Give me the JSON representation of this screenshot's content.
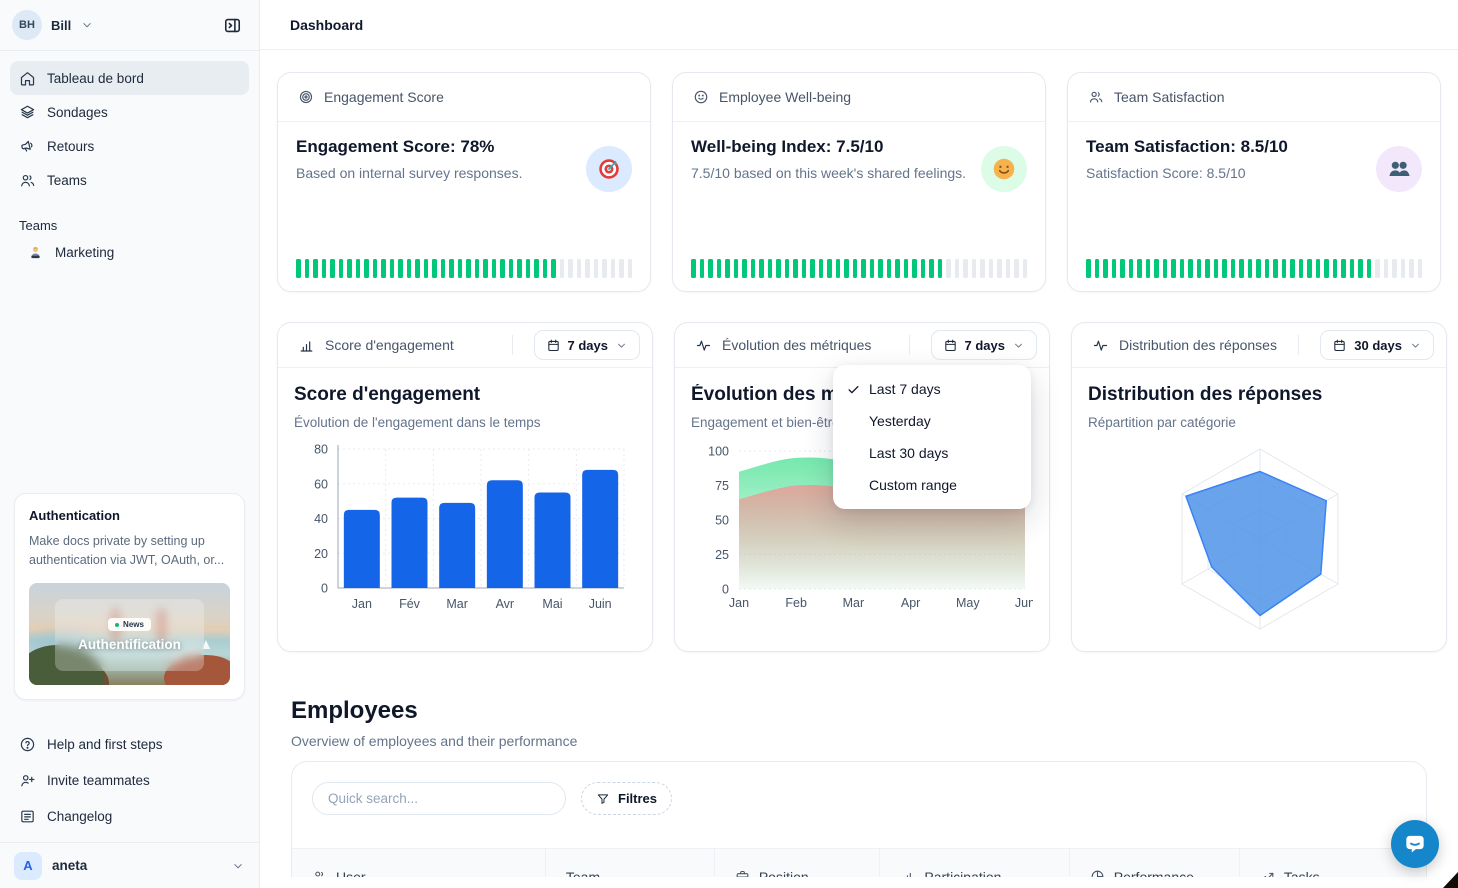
{
  "colors": {
    "green": "#00c878",
    "bar_blue": "#1565e8",
    "radar_blue": "#4f93e8",
    "area_green": "#6ee7a8",
    "area_red": "#f09694",
    "chat_blue": "#1486c9"
  },
  "sidebar": {
    "workspace": {
      "initials": "BH",
      "name": "Bill"
    },
    "nav": [
      {
        "icon": "home-icon",
        "label": "Tableau de bord",
        "active": true
      },
      {
        "icon": "layers-icon",
        "label": "Sondages",
        "active": false
      },
      {
        "icon": "megaphone-icon",
        "label": "Retours",
        "active": false
      },
      {
        "icon": "users-icon",
        "label": "Teams",
        "active": false
      }
    ],
    "teams_section": {
      "label": "Teams",
      "items": [
        {
          "label": "Marketing"
        }
      ]
    },
    "promo_card": {
      "title": "Authentication",
      "body": "Make docs private by setting up authentication via JWT, OAuth, or...",
      "badge": "News",
      "image_caption": "Authentification"
    },
    "footer_nav": [
      {
        "icon": "help-icon",
        "label": "Help and first steps"
      },
      {
        "icon": "user-plus-icon",
        "label": "Invite teammates"
      },
      {
        "icon": "changelog-icon",
        "label": "Changelog"
      }
    ],
    "account": {
      "initial": "A",
      "name": "aneta"
    }
  },
  "header": {
    "title": "Dashboard"
  },
  "stat_cards": [
    {
      "header_label": "Engagement Score",
      "header_icon": "target-icon",
      "title": "Engagement Score: 78%",
      "subtitle": "Based on internal survey responses.",
      "emblem": "target-emblem",
      "emblem_bg": "#dbeafe",
      "progress_pct": 78
    },
    {
      "header_label": "Employee Well-being",
      "header_icon": "smiley-icon",
      "title": "Well-being Index: 7.5/10",
      "subtitle": "7.5/10 based on this week's shared feelings.",
      "emblem": "smiley-emblem",
      "emblem_bg": "#dcfce7",
      "progress_pct": 75
    },
    {
      "header_label": "Team Satisfaction",
      "header_icon": "users-icon",
      "title": "Team Satisfaction: 8.5/10",
      "subtitle": "Satisfaction Score: 8.5/10",
      "emblem": "people-emblem",
      "emblem_bg": "#f3e8fb",
      "progress_pct": 85
    }
  ],
  "chart_cards": [
    {
      "header_label": "Score d'engagement",
      "header_icon": "chart-bars-icon",
      "range_label": "7 days"
    },
    {
      "header_label": "Évolution des métriques",
      "header_icon": "activity-icon",
      "range_label": "7 days"
    },
    {
      "header_label": "Distribution des réponses",
      "header_icon": "activity-icon",
      "range_label": "30 days"
    }
  ],
  "chart_data": [
    {
      "type": "bar",
      "title": "Score d'engagement",
      "subtitle": "Évolution de l'engagement dans le temps",
      "categories": [
        "Jan",
        "Fév",
        "Mar",
        "Avr",
        "Mai",
        "Juin"
      ],
      "values": [
        45,
        52,
        49,
        62,
        55,
        68
      ],
      "ylim": [
        0,
        80
      ],
      "yticks": [
        0,
        20,
        40,
        60,
        80
      ],
      "color": "#1565e8",
      "grid": "dashed"
    },
    {
      "type": "area",
      "title": "Évolution des métriques",
      "subtitle": "Engagement et bien-être",
      "x": [
        "Jan",
        "Feb",
        "Mar",
        "Apr",
        "May",
        "Jun"
      ],
      "series": [
        {
          "name": "engagement",
          "color": "#6ee7a8",
          "values": [
            85,
            95,
            90,
            63,
            66,
            72
          ]
        },
        {
          "name": "bien-être",
          "color": "#f09694",
          "values": [
            65,
            75,
            72,
            60,
            62,
            64
          ]
        }
      ],
      "ylim": [
        0,
        100
      ],
      "yticks": [
        0,
        25,
        50,
        75,
        100
      ],
      "grid": "dashed"
    },
    {
      "type": "radar",
      "title": "Distribution des réponses",
      "subtitle": "Répartition par catégorie",
      "axes": 6,
      "values": [
        75,
        85,
        78,
        85,
        62,
        95
      ],
      "max": 100,
      "rings": 3,
      "color": "#4f93e8"
    }
  ],
  "dropdown": {
    "items": [
      "Last 7 days",
      "Yesterday",
      "Last 30 days",
      "Custom range"
    ],
    "selected": "Last 7 days"
  },
  "employees": {
    "title": "Employees",
    "subtitle": "Overview of employees and their performance",
    "search_placeholder": "Quick search...",
    "filter_label": "Filtres",
    "columns": [
      {
        "label": "User",
        "icon": "users-icon"
      },
      {
        "label": "Team",
        "icon": ""
      },
      {
        "label": "Position",
        "icon": "briefcase-icon"
      },
      {
        "label": "Participation",
        "icon": "chart-bars-icon"
      },
      {
        "label": "Performance",
        "icon": "pie-icon"
      },
      {
        "label": "Tasks",
        "icon": "trend-icon"
      }
    ]
  }
}
